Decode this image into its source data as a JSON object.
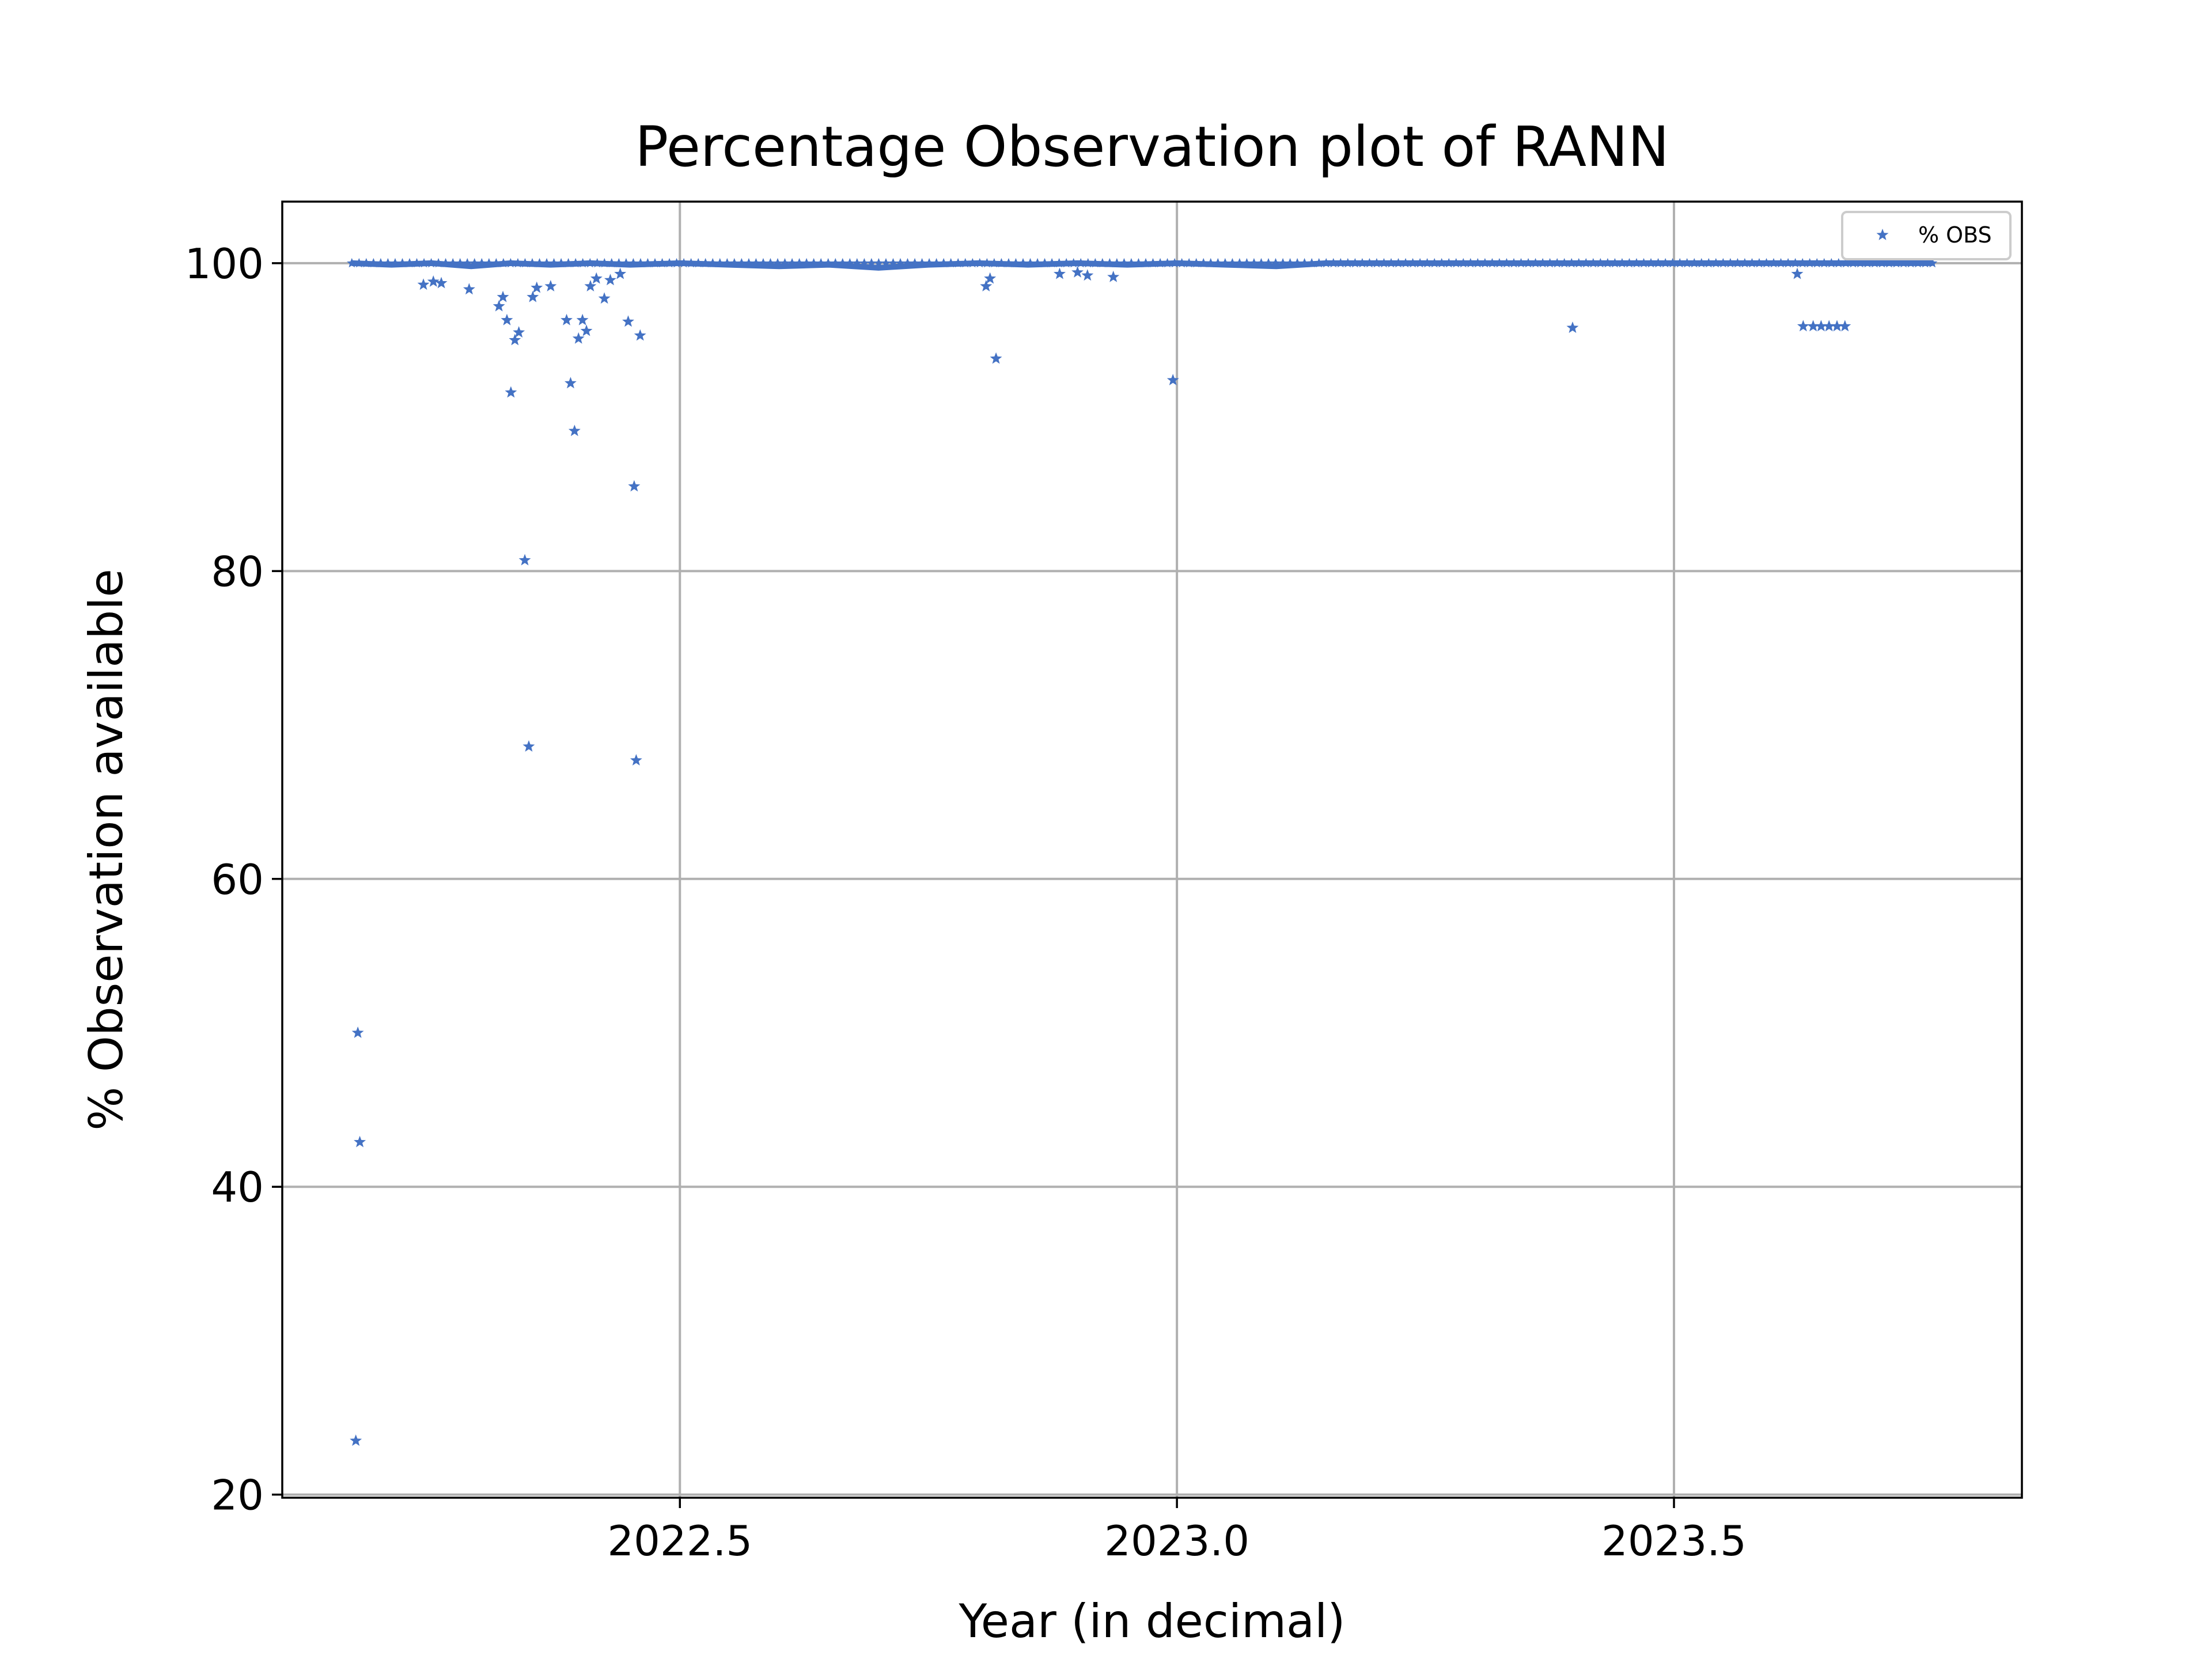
{
  "chart_data": {
    "type": "scatter",
    "title": "Percentage Observation plot of RANN",
    "xlabel": "Year (in decimal)",
    "ylabel": "% Observation available",
    "xlim": [
      2022.1,
      2023.85
    ],
    "ylim": [
      19.8,
      104
    ],
    "xticks": [
      2022.5,
      2023.0,
      2023.5
    ],
    "xtick_labels": [
      "2022.5",
      "2023.0",
      "2023.5"
    ],
    "yticks": [
      20,
      40,
      60,
      80,
      100
    ],
    "ytick_labels": [
      "20",
      "40",
      "60",
      "80",
      "100"
    ],
    "grid": true,
    "legend_placement": "top-right",
    "marker": "star",
    "color": "#4472c4",
    "series": [
      {
        "name": "% OBS",
        "points": [
          [
            2022.174,
            23.5
          ],
          [
            2022.176,
            50.0
          ],
          [
            2022.178,
            42.9
          ],
          [
            2022.242,
            98.6
          ],
          [
            2022.252,
            98.8
          ],
          [
            2022.26,
            98.7
          ],
          [
            2022.288,
            98.3
          ],
          [
            2022.318,
            97.2
          ],
          [
            2022.322,
            97.8
          ],
          [
            2022.326,
            96.3
          ],
          [
            2022.33,
            91.6
          ],
          [
            2022.334,
            95.0
          ],
          [
            2022.338,
            95.5
          ],
          [
            2022.344,
            80.7
          ],
          [
            2022.348,
            68.6
          ],
          [
            2022.352,
            97.8
          ],
          [
            2022.356,
            98.4
          ],
          [
            2022.37,
            98.5
          ],
          [
            2022.386,
            96.3
          ],
          [
            2022.39,
            92.2
          ],
          [
            2022.394,
            89.1
          ],
          [
            2022.398,
            95.1
          ],
          [
            2022.402,
            96.3
          ],
          [
            2022.406,
            95.6
          ],
          [
            2022.41,
            98.5
          ],
          [
            2022.416,
            99.0
          ],
          [
            2022.424,
            97.7
          ],
          [
            2022.43,
            98.9
          ],
          [
            2022.44,
            99.3
          ],
          [
            2022.448,
            96.2
          ],
          [
            2022.454,
            85.5
          ],
          [
            2022.456,
            67.7
          ],
          [
            2022.46,
            95.3
          ],
          [
            2022.808,
            98.5
          ],
          [
            2022.812,
            99.0
          ],
          [
            2022.818,
            93.8
          ],
          [
            2022.882,
            99.3
          ],
          [
            2022.9,
            99.4
          ],
          [
            2022.91,
            99.2
          ],
          [
            2022.936,
            99.1
          ],
          [
            2022.996,
            92.4
          ],
          [
            2023.398,
            95.8
          ],
          [
            2023.624,
            99.3
          ],
          [
            2023.63,
            95.9
          ],
          [
            2023.64,
            95.9
          ],
          [
            2023.648,
            95.9
          ],
          [
            2023.656,
            95.9
          ],
          [
            2023.664,
            95.9
          ],
          [
            2023.672,
            95.9
          ]
        ],
        "dense_baseline": {
          "x_range": [
            2022.17,
            2023.76
          ],
          "y": 100.0,
          "note_points": [
            [
              2022.17,
              100.0
            ],
            [
              2022.21,
              99.9
            ],
            [
              2022.25,
              100.0
            ],
            [
              2022.29,
              99.8
            ],
            [
              2022.33,
              100.0
            ],
            [
              2022.37,
              99.9
            ],
            [
              2022.41,
              100.0
            ],
            [
              2022.45,
              99.9
            ],
            [
              2022.5,
              100.0
            ],
            [
              2022.55,
              99.9
            ],
            [
              2022.6,
              99.8
            ],
            [
              2022.65,
              99.9
            ],
            [
              2022.7,
              99.7
            ],
            [
              2022.75,
              99.9
            ],
            [
              2022.8,
              100.0
            ],
            [
              2022.85,
              99.9
            ],
            [
              2022.9,
              100.0
            ],
            [
              2022.95,
              99.9
            ],
            [
              2023.0,
              100.0
            ],
            [
              2023.05,
              99.9
            ],
            [
              2023.1,
              99.8
            ],
            [
              2023.15,
              100.0
            ],
            [
              2023.2,
              100.0
            ],
            [
              2023.3,
              100.0
            ],
            [
              2023.4,
              100.0
            ],
            [
              2023.5,
              100.0
            ],
            [
              2023.6,
              100.0
            ],
            [
              2023.7,
              100.0
            ],
            [
              2023.76,
              100.0
            ]
          ]
        }
      }
    ]
  }
}
